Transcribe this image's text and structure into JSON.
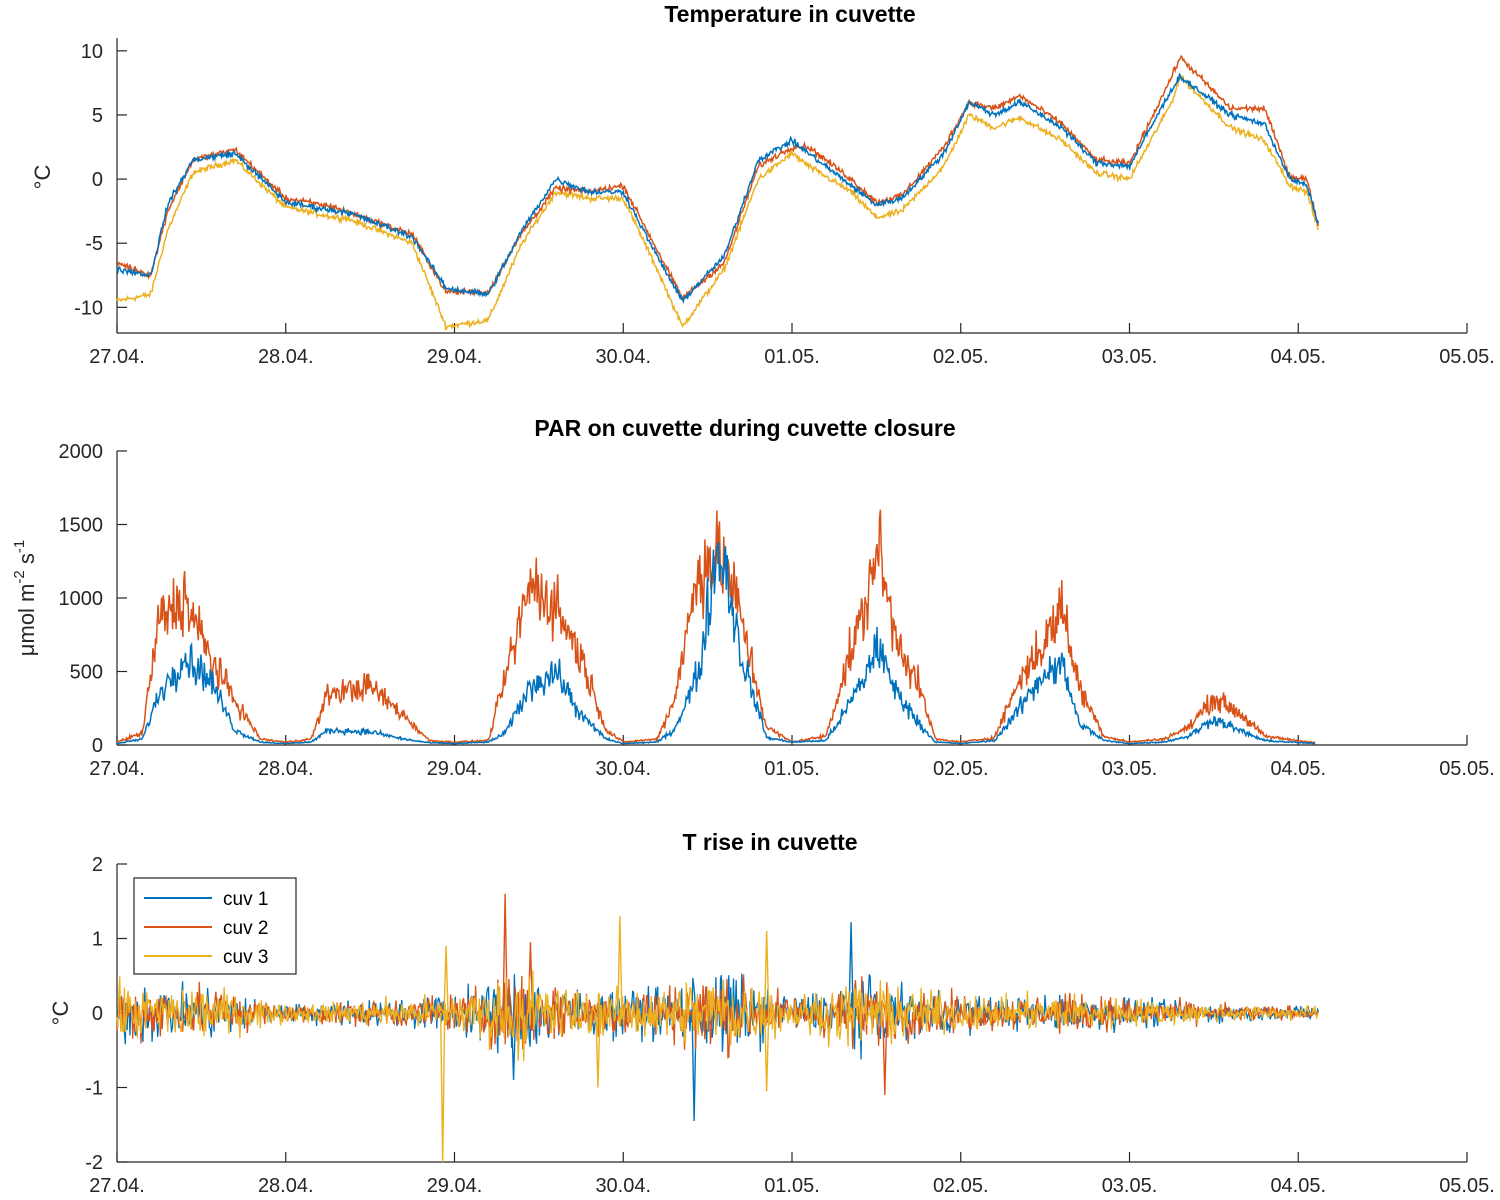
{
  "chart_data": [
    {
      "type": "line",
      "title": "Temperature in cuvette",
      "ylabel": "°C",
      "ylim": [
        -12,
        11
      ],
      "xlim": [
        "27.04.",
        "05.05."
      ],
      "yticks": [
        10,
        5,
        0,
        -5,
        -10
      ],
      "xticks": [
        "27.04.",
        "28.04.",
        "29.04.",
        "30.04.",
        "01.05.",
        "02.05.",
        "03.05.",
        "04.05.",
        "05.05."
      ],
      "x_day_offsets": [
        0,
        0.2,
        0.3,
        0.45,
        0.7,
        1.0,
        1.3,
        1.35,
        1.75,
        1.95,
        2.2,
        2.4,
        2.6,
        2.8,
        3.0,
        3.2,
        3.35,
        3.6,
        3.8,
        4.0,
        4.1,
        4.35,
        4.5,
        4.65,
        4.9,
        5.05,
        5.2,
        5.35,
        5.6,
        5.8,
        6.0,
        6.25,
        6.3,
        6.6,
        6.8,
        6.95,
        7.05,
        7.12
      ],
      "series": [
        {
          "name": "cuv 1",
          "color": "#0072BD",
          "values": [
            -7,
            -7.5,
            -2,
            1.5,
            2,
            -1.8,
            -2.5,
            -2.5,
            -4.5,
            -8.5,
            -9,
            -4,
            0,
            -1,
            -1,
            -6,
            -9.5,
            -6,
            1.5,
            3,
            2,
            -0.5,
            -2,
            -1.5,
            2,
            6,
            5,
            6,
            4,
            1.3,
            1,
            7,
            8,
            5,
            4.3,
            0,
            -0.5,
            -3.5
          ]
        },
        {
          "name": "cuv 2",
          "color": "#D95319",
          "values": [
            -6.5,
            -7.5,
            -2.5,
            1.5,
            2.3,
            -1.5,
            -2.2,
            -2.5,
            -4.3,
            -8.8,
            -8.8,
            -4.2,
            -0.7,
            -1,
            -0.5,
            -5.5,
            -9.3,
            -6.5,
            1,
            2.5,
            2.5,
            0,
            -1.8,
            -1.3,
            2.5,
            6,
            5.5,
            6.5,
            4.3,
            1.5,
            1.2,
            8,
            9.5,
            5.5,
            5.5,
            0.2,
            0,
            -3.7
          ]
        },
        {
          "name": "cuv 3",
          "color": "#EDB120",
          "values": [
            -9.5,
            -9,
            -4,
            0.5,
            1.5,
            -2.2,
            -3,
            -3,
            -5,
            -11.5,
            -11,
            -5,
            -1,
            -1.5,
            -1.5,
            -7,
            -11.5,
            -7,
            0,
            2,
            1,
            -1,
            -3,
            -2.5,
            1,
            5,
            4,
            4.8,
            3,
            0.5,
            0,
            6,
            8,
            4,
            3,
            -0.5,
            -1,
            -4
          ]
        }
      ]
    },
    {
      "type": "line",
      "title": "PAR on cuvette during cuvette closure",
      "ylabel": "μmol m^-2 s^-1",
      "ylim": [
        0,
        2000
      ],
      "xlim": [
        "27.04.",
        "05.05."
      ],
      "yticks": [
        2000,
        1500,
        1000,
        500,
        0
      ],
      "xticks": [
        "27.04.",
        "28.04.",
        "29.04.",
        "30.04.",
        "01.05.",
        "02.05.",
        "03.05.",
        "04.05.",
        "05.05."
      ],
      "x_day_offsets": [
        0,
        0.15,
        0.25,
        0.4,
        0.55,
        0.7,
        0.85,
        1.0,
        1.15,
        1.25,
        1.5,
        1.7,
        1.85,
        2.0,
        2.2,
        2.3,
        2.45,
        2.6,
        2.75,
        2.9,
        3.0,
        3.2,
        3.3,
        3.45,
        3.55,
        3.6,
        3.7,
        3.85,
        4.0,
        4.2,
        4.3,
        4.45,
        4.5,
        4.6,
        4.75,
        4.85,
        5.0,
        5.2,
        5.35,
        5.5,
        5.6,
        5.7,
        5.85,
        6.0,
        6.2,
        6.35,
        6.5,
        6.65,
        6.8,
        7.1
      ],
      "series": [
        {
          "name": "cuv 1",
          "color": "#0072BD",
          "values": [
            10,
            40,
            350,
            600,
            450,
            100,
            20,
            10,
            20,
            100,
            90,
            40,
            15,
            10,
            20,
            80,
            400,
            500,
            200,
            40,
            10,
            20,
            100,
            500,
            1300,
            1250,
            600,
            50,
            20,
            30,
            200,
            500,
            700,
            400,
            150,
            20,
            10,
            30,
            250,
            500,
            550,
            150,
            30,
            10,
            20,
            60,
            180,
            100,
            30,
            10
          ]
        },
        {
          "name": "cuv 2",
          "color": "#D95319",
          "values": [
            20,
            80,
            850,
            1000,
            600,
            300,
            40,
            20,
            40,
            350,
            400,
            200,
            30,
            20,
            30,
            450,
            1100,
            950,
            600,
            100,
            20,
            40,
            300,
            1200,
            1280,
            1250,
            850,
            120,
            20,
            60,
            450,
            1000,
            1400,
            800,
            400,
            40,
            20,
            50,
            450,
            700,
            950,
            400,
            60,
            20,
            40,
            120,
            320,
            220,
            60,
            15
          ]
        }
      ]
    },
    {
      "type": "line",
      "title": "T rise in cuvette",
      "ylabel": "°C",
      "ylim": [
        -2,
        2
      ],
      "xlim": [
        "27.04.",
        "05.05."
      ],
      "yticks": [
        2,
        1,
        0,
        -1,
        -2
      ],
      "xticks": [
        "27.04.",
        "28.04.",
        "29.04.",
        "30.04.",
        "01.05.",
        "02.05.",
        "03.05.",
        "04.05.",
        "05.05."
      ],
      "legend": {
        "placement": "top-left",
        "entries": [
          "cuv 1",
          "cuv 2",
          "cuv 3"
        ]
      },
      "noise_amplitude_envelope": {
        "x_day_offsets": [
          0,
          0.5,
          1.0,
          1.5,
          2.0,
          2.4,
          2.8,
          3.2,
          3.6,
          4.0,
          4.4,
          4.8,
          5.2,
          5.6,
          6.0,
          6.5,
          7.12
        ],
        "amplitude": [
          0.45,
          0.45,
          0.15,
          0.2,
          0.3,
          0.7,
          0.35,
          0.4,
          0.7,
          0.25,
          0.55,
          0.35,
          0.25,
          0.3,
          0.25,
          0.15,
          0.1
        ]
      },
      "series": [
        {
          "name": "cuv 1",
          "color": "#0072BD",
          "spikes": [
            [
              3.42,
              -1.45
            ],
            [
              4.35,
              1.22
            ],
            [
              2.35,
              -0.9
            ]
          ]
        },
        {
          "name": "cuv 2",
          "color": "#D95319",
          "spikes": [
            [
              2.3,
              1.6
            ],
            [
              4.55,
              -1.1
            ],
            [
              2.45,
              0.95
            ]
          ]
        },
        {
          "name": "cuv 3",
          "color": "#EDB120",
          "spikes": [
            [
              1.93,
              -2.0
            ],
            [
              1.95,
              0.9
            ],
            [
              2.98,
              1.3
            ],
            [
              3.85,
              1.1
            ],
            [
              3.85,
              -1.05
            ],
            [
              2.85,
              -1.0
            ]
          ]
        }
      ]
    }
  ]
}
